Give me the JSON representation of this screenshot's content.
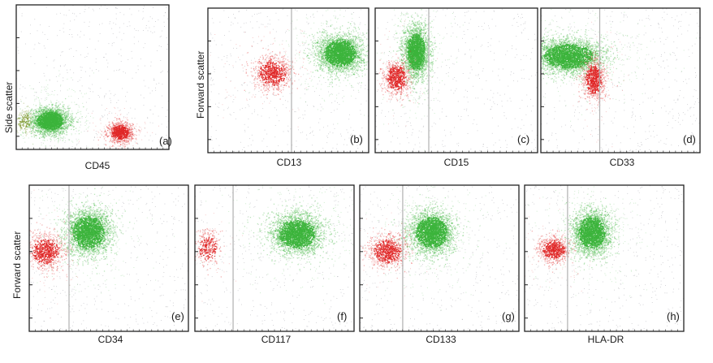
{
  "colors": {
    "blast_population": "#3cb43c",
    "reference_population": "#e02828",
    "background_events": "#9a9aa2",
    "gate_line": "#b0b0b0"
  },
  "chart_data": [
    {
      "type": "scatter",
      "panel": "(a)",
      "xlabel": "CD45",
      "ylabel": "Side scatter",
      "gate": null,
      "populations": [
        {
          "color": "green",
          "x_center": 0.22,
          "y_center": 0.2,
          "spread_x": 0.06,
          "spread_y": 0.045,
          "count": 2600
        },
        {
          "color": "red",
          "x_center": 0.68,
          "y_center": 0.12,
          "spread_x": 0.04,
          "spread_y": 0.035,
          "count": 900
        },
        {
          "color": "olive",
          "x_center": 0.05,
          "y_center": 0.2,
          "spread_x": 0.03,
          "spread_y": 0.04,
          "count": 150
        }
      ]
    },
    {
      "type": "scatter",
      "panel": "(b)",
      "xlabel": "CD13",
      "ylabel": "Forward scatter",
      "gate": 0.52,
      "populations": [
        {
          "color": "green",
          "x_center": 0.82,
          "y_center": 0.69,
          "spread_x": 0.07,
          "spread_y": 0.065,
          "count": 2800
        },
        {
          "color": "red",
          "x_center": 0.4,
          "y_center": 0.55,
          "spread_x": 0.06,
          "spread_y": 0.06,
          "count": 800
        }
      ]
    },
    {
      "type": "scatter",
      "panel": "(c)",
      "xlabel": "CD15",
      "ylabel": "",
      "gate": 0.33,
      "populations": [
        {
          "color": "green",
          "x_center": 0.25,
          "y_center": 0.7,
          "spread_x": 0.04,
          "spread_y": 0.09,
          "count": 2400
        },
        {
          "color": "red",
          "x_center": 0.13,
          "y_center": 0.52,
          "spread_x": 0.04,
          "spread_y": 0.06,
          "count": 700
        }
      ]
    },
    {
      "type": "scatter",
      "panel": "(d)",
      "xlabel": "CD33",
      "ylabel": "",
      "gate": 0.37,
      "populations": [
        {
          "color": "green",
          "x_center": 0.17,
          "y_center": 0.67,
          "spread_x": 0.11,
          "spread_y": 0.06,
          "count": 3200
        },
        {
          "color": "red",
          "x_center": 0.33,
          "y_center": 0.51,
          "spread_x": 0.035,
          "spread_y": 0.07,
          "count": 800
        }
      ]
    },
    {
      "type": "scatter",
      "panel": "(e)",
      "xlabel": "CD34",
      "ylabel": "Forward scatter",
      "gate": 0.25,
      "populations": [
        {
          "color": "green",
          "x_center": 0.37,
          "y_center": 0.68,
          "spread_x": 0.07,
          "spread_y": 0.08,
          "count": 2700
        },
        {
          "color": "red",
          "x_center": 0.1,
          "y_center": 0.55,
          "spread_x": 0.06,
          "spread_y": 0.06,
          "count": 800
        }
      ]
    },
    {
      "type": "scatter",
      "panel": "(f)",
      "xlabel": "CD117",
      "ylabel": "",
      "gate": 0.24,
      "populations": [
        {
          "color": "green",
          "x_center": 0.64,
          "y_center": 0.67,
          "spread_x": 0.08,
          "spread_y": 0.07,
          "count": 2800
        },
        {
          "color": "red",
          "x_center": 0.08,
          "y_center": 0.57,
          "spread_x": 0.04,
          "spread_y": 0.06,
          "count": 300
        }
      ]
    },
    {
      "type": "scatter",
      "panel": "(g)",
      "xlabel": "CD133",
      "ylabel": "",
      "gate": 0.27,
      "populations": [
        {
          "color": "green",
          "x_center": 0.45,
          "y_center": 0.68,
          "spread_x": 0.07,
          "spread_y": 0.075,
          "count": 2800
        },
        {
          "color": "red",
          "x_center": 0.17,
          "y_center": 0.55,
          "spread_x": 0.06,
          "spread_y": 0.055,
          "count": 800
        }
      ]
    },
    {
      "type": "scatter",
      "panel": "(h)",
      "xlabel": "HLA-DR",
      "ylabel": "",
      "gate": 0.27,
      "populations": [
        {
          "color": "green",
          "x_center": 0.42,
          "y_center": 0.68,
          "spread_x": 0.06,
          "spread_y": 0.075,
          "count": 2600
        },
        {
          "color": "red",
          "x_center": 0.18,
          "y_center": 0.56,
          "spread_x": 0.05,
          "spread_y": 0.045,
          "count": 700
        }
      ]
    }
  ]
}
